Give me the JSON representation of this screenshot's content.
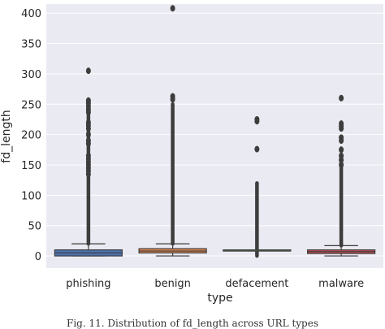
{
  "chart_data": {
    "type": "box",
    "xlabel": "type",
    "ylabel": "fd_length",
    "categories": [
      "phishing",
      "benign",
      "defacement",
      "malware"
    ],
    "ylim": [
      -20,
      415
    ],
    "yticks": [
      0,
      50,
      100,
      150,
      200,
      250,
      300,
      350,
      400
    ],
    "grid": true,
    "boxes": [
      {
        "category": "phishing",
        "color": "#4c72b0",
        "q1": 0,
        "median": 5,
        "q3": 10,
        "whisker_low": 0,
        "whisker_high": 20,
        "outlier_range": [
          20,
          255
        ],
        "outliers": [
          305,
          256,
          252,
          247,
          242,
          237,
          220,
          215,
          210,
          200,
          190,
          185,
          165,
          160,
          155,
          150,
          145,
          140,
          135
        ]
      },
      {
        "category": "benign",
        "color": "#dd8452",
        "q1": 5,
        "median": 8,
        "q3": 12,
        "whisker_low": 0,
        "whisker_high": 20,
        "outlier_range": [
          20,
          250
        ],
        "outliers": [
          408,
          263,
          258
        ]
      },
      {
        "category": "defacement",
        "color": "#55a868",
        "q1": 9,
        "median": 10,
        "q3": 10,
        "whisker_low": 9,
        "whisker_high": 10,
        "outlier_range": [
          0,
          120
        ],
        "outliers": [
          225,
          222,
          176
        ]
      },
      {
        "category": "malware",
        "color": "#c44e52",
        "q1": 4,
        "median": 7,
        "q3": 10,
        "whisker_low": 0,
        "whisker_high": 17,
        "outlier_range": [
          17,
          145
        ],
        "outliers": [
          260,
          218,
          214,
          210,
          195,
          190,
          175,
          165,
          158,
          150
        ]
      }
    ]
  },
  "caption": "Fig. 11. Distribution of fd_length across URL types"
}
